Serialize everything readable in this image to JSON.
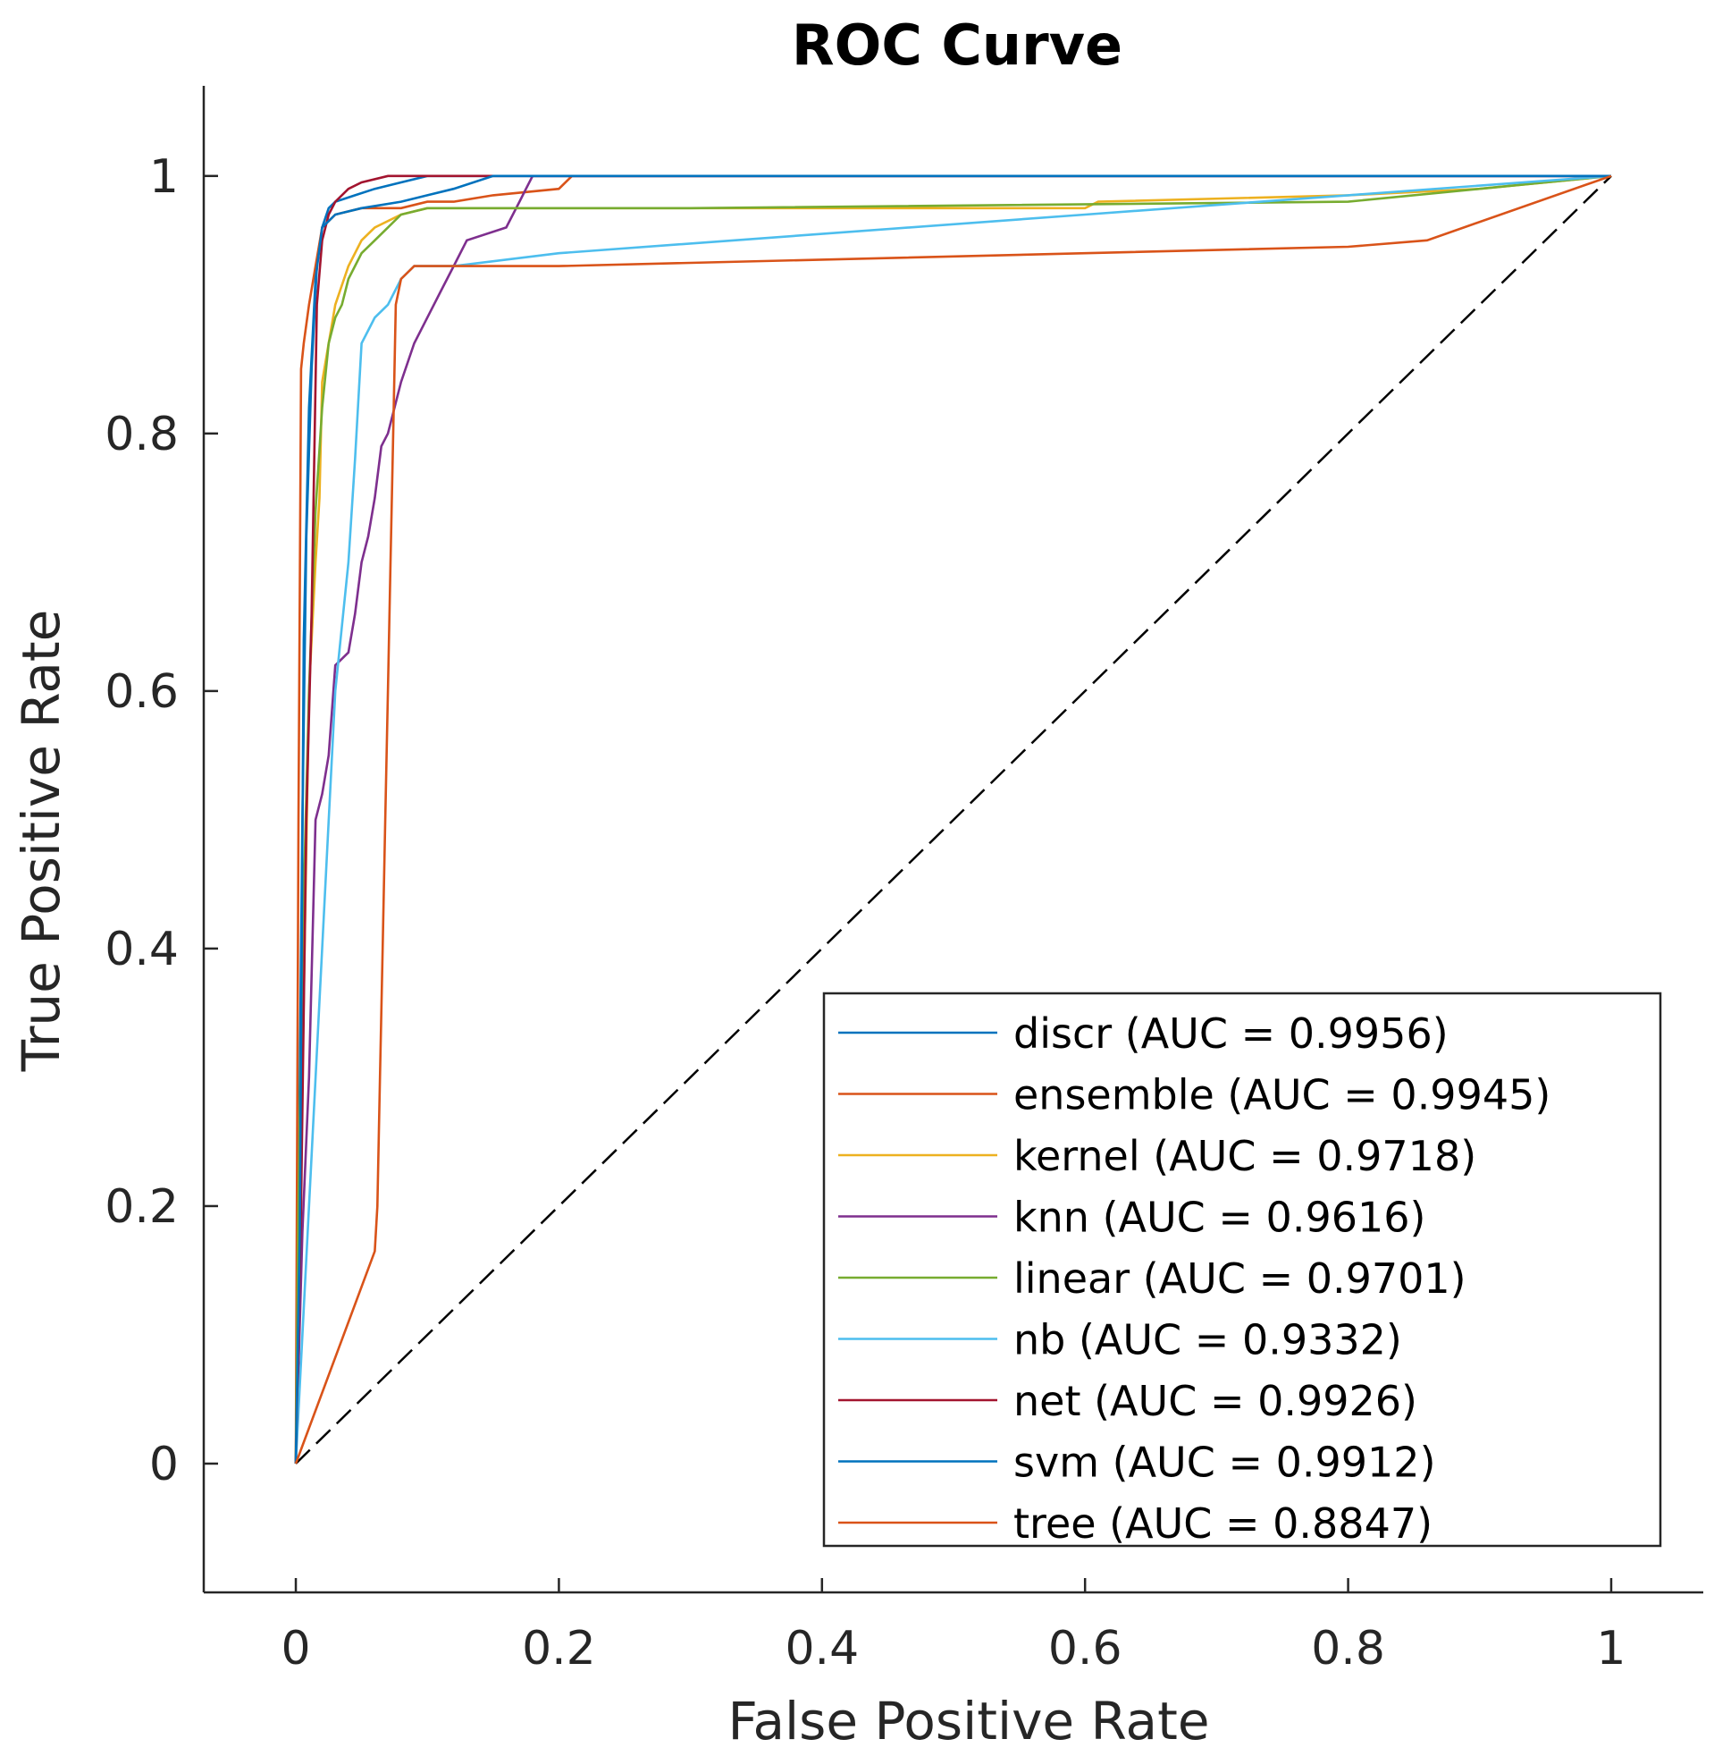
{
  "chart_data": {
    "type": "line",
    "title": "ROC Curve",
    "xlabel": "False Positive Rate",
    "ylabel": "True Positive Rate",
    "xlim": [
      -0.07,
      1.07
    ],
    "ylim": [
      -0.1,
      1.07
    ],
    "xticks": [
      0,
      0.2,
      0.4,
      0.6,
      0.8,
      1
    ],
    "xtick_labels": [
      "0",
      "0.2",
      "0.4",
      "0.6",
      "0.8",
      "1"
    ],
    "yticks": [
      0,
      0.2,
      0.4,
      0.6,
      0.8,
      1
    ],
    "ytick_labels": [
      "0",
      "0.2",
      "0.4",
      "0.6",
      "0.8",
      "1"
    ],
    "grid": false,
    "legend_position": "bottom-right",
    "reference_line": {
      "style": "dashed",
      "color": "#000000",
      "x": [
        0,
        1
      ],
      "y": [
        0,
        1
      ]
    },
    "series": [
      {
        "name": "discr",
        "label": "discr (AUC = 0.9956)",
        "color": "#0072BD",
        "x": [
          0,
          0.002,
          0.005,
          0.008,
          0.012,
          0.016,
          0.02,
          0.025,
          0.03,
          0.045,
          0.06,
          0.08,
          0.1,
          0.115,
          0.2,
          0.5,
          1
        ],
        "y": [
          0,
          0.2,
          0.5,
          0.72,
          0.85,
          0.93,
          0.96,
          0.975,
          0.98,
          0.985,
          0.99,
          0.995,
          1,
          1,
          1,
          1,
          1
        ]
      },
      {
        "name": "ensemble",
        "label": "ensemble (AUC = 0.9945)",
        "color": "#D95319",
        "x": [
          0,
          0.002,
          0.004,
          0.006,
          0.01,
          0.015,
          0.02,
          0.03,
          0.05,
          0.08,
          0.1,
          0.12,
          0.15,
          0.2,
          0.21,
          0.5,
          1
        ],
        "y": [
          0,
          0.5,
          0.85,
          0.87,
          0.9,
          0.93,
          0.96,
          0.97,
          0.975,
          0.975,
          0.98,
          0.98,
          0.985,
          0.99,
          1,
          1,
          1
        ]
      },
      {
        "name": "kernel",
        "label": "kernel (AUC = 0.9718)",
        "color": "#EDB120",
        "x": [
          0,
          0.005,
          0.01,
          0.015,
          0.018,
          0.02,
          0.025,
          0.03,
          0.04,
          0.05,
          0.06,
          0.08,
          0.1,
          0.24,
          0.6,
          0.61,
          0.8,
          0.9,
          1
        ],
        "y": [
          0,
          0.3,
          0.6,
          0.7,
          0.75,
          0.84,
          0.87,
          0.9,
          0.93,
          0.95,
          0.96,
          0.97,
          0.975,
          0.975,
          0.975,
          0.98,
          0.985,
          0.99,
          1
        ]
      },
      {
        "name": "knn",
        "label": "knn (AUC = 0.9616)",
        "color": "#7E2F8E",
        "x": [
          0,
          0.005,
          0.01,
          0.015,
          0.02,
          0.025,
          0.03,
          0.04,
          0.045,
          0.05,
          0.055,
          0.06,
          0.065,
          0.07,
          0.08,
          0.09,
          0.1,
          0.11,
          0.12,
          0.13,
          0.16,
          0.17,
          0.175,
          0.18,
          0.5,
          1
        ],
        "y": [
          0,
          0.18,
          0.3,
          0.5,
          0.52,
          0.55,
          0.62,
          0.63,
          0.66,
          0.7,
          0.72,
          0.75,
          0.79,
          0.8,
          0.84,
          0.87,
          0.89,
          0.91,
          0.93,
          0.95,
          0.96,
          0.98,
          0.99,
          1,
          1,
          1
        ]
      },
      {
        "name": "linear",
        "label": "linear (AUC = 0.9701)",
        "color": "#77AC30",
        "x": [
          0,
          0.002,
          0.005,
          0.01,
          0.015,
          0.02,
          0.025,
          0.03,
          0.035,
          0.04,
          0.05,
          0.06,
          0.07,
          0.08,
          0.1,
          0.3,
          0.8,
          0.9,
          1
        ],
        "y": [
          0,
          0.2,
          0.4,
          0.6,
          0.74,
          0.82,
          0.87,
          0.89,
          0.9,
          0.92,
          0.94,
          0.95,
          0.96,
          0.97,
          0.975,
          0.975,
          0.98,
          0.99,
          1
        ]
      },
      {
        "name": "nb",
        "label": "nb (AUC = 0.9332)",
        "color": "#4DBEEE",
        "x": [
          0,
          0.005,
          0.01,
          0.02,
          0.03,
          0.04,
          0.045,
          0.05,
          0.055,
          0.06,
          0.07,
          0.08,
          0.09,
          0.12,
          0.2,
          0.4,
          0.6,
          0.8,
          1
        ],
        "y": [
          0,
          0.1,
          0.2,
          0.4,
          0.6,
          0.7,
          0.78,
          0.87,
          0.88,
          0.89,
          0.9,
          0.92,
          0.93,
          0.93,
          0.94,
          0.955,
          0.97,
          0.985,
          1
        ]
      },
      {
        "name": "net",
        "label": "net (AUC = 0.9926)",
        "color": "#A2142F",
        "x": [
          0,
          0.004,
          0.008,
          0.012,
          0.016,
          0.02,
          0.025,
          0.03,
          0.04,
          0.05,
          0.07,
          0.09,
          0.12,
          0.5,
          1
        ],
        "y": [
          0,
          0.2,
          0.5,
          0.66,
          0.9,
          0.95,
          0.97,
          0.98,
          0.99,
          0.995,
          1,
          1,
          1,
          1,
          1
        ]
      },
      {
        "name": "svm",
        "label": "svm (AUC = 0.9912)",
        "color": "#0072BD",
        "x": [
          0,
          0.003,
          0.006,
          0.01,
          0.015,
          0.02,
          0.03,
          0.05,
          0.08,
          0.1,
          0.12,
          0.15,
          0.5,
          1
        ],
        "y": [
          0,
          0.18,
          0.64,
          0.82,
          0.92,
          0.96,
          0.97,
          0.975,
          0.98,
          0.985,
          0.99,
          1,
          1,
          1
        ]
      },
      {
        "name": "tree",
        "label": "tree (AUC = 0.8847)",
        "color": "#D95319",
        "x": [
          0,
          0.06,
          0.062,
          0.064,
          0.066,
          0.068,
          0.07,
          0.072,
          0.074,
          0.076,
          0.08,
          0.09,
          0.1,
          0.2,
          0.4,
          0.6,
          0.8,
          0.86,
          1
        ],
        "y": [
          0,
          0.165,
          0.2,
          0.3,
          0.4,
          0.5,
          0.6,
          0.7,
          0.8,
          0.9,
          0.92,
          0.93,
          0.93,
          0.93,
          0.935,
          0.94,
          0.945,
          0.95,
          1
        ]
      }
    ]
  }
}
